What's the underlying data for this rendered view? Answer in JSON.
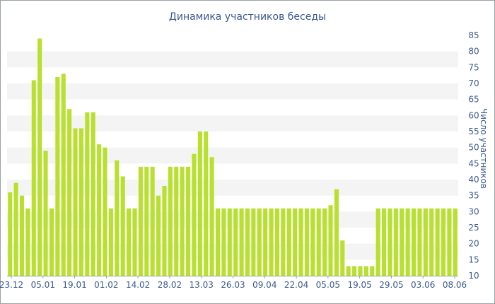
{
  "chart_data": {
    "type": "bar",
    "title": "Динамика участников беседы",
    "xlabel": "",
    "ylabel": "Число участников",
    "ylim": [
      10,
      85
    ],
    "yticks": [
      10,
      15,
      20,
      25,
      30,
      35,
      40,
      45,
      50,
      55,
      60,
      65,
      70,
      75,
      80,
      85
    ],
    "y_axis_side": "right",
    "grid": "horizontal bands",
    "legend": "none",
    "bar_color": "#b8e02c",
    "band_color": "#f4f4f4",
    "text_color": "#3b5a8f",
    "x_tick_labels": [
      "23.12",
      "05.01",
      "19.01",
      "01.02",
      "14.02",
      "28.02",
      "13.03",
      "26.03",
      "09.04",
      "22.04",
      "05.05",
      "19.05",
      "29.05",
      "03.06",
      "08.06"
    ],
    "values": [
      36,
      39,
      35,
      31,
      71,
      84,
      49,
      31,
      72,
      73,
      62,
      56,
      56,
      61,
      61,
      51,
      50,
      31,
      46,
      41,
      31,
      31,
      44,
      44,
      44,
      35,
      38,
      44,
      44,
      44,
      44,
      48,
      55,
      55,
      47,
      31,
      31,
      31,
      31,
      31,
      31,
      31,
      31,
      31,
      31,
      31,
      31,
      31,
      31,
      31,
      31,
      31,
      31,
      31,
      32,
      37,
      21,
      13,
      13,
      13,
      13,
      13,
      31,
      31,
      31,
      31,
      31,
      31,
      31,
      31,
      31,
      31,
      31,
      31,
      31,
      31
    ]
  }
}
